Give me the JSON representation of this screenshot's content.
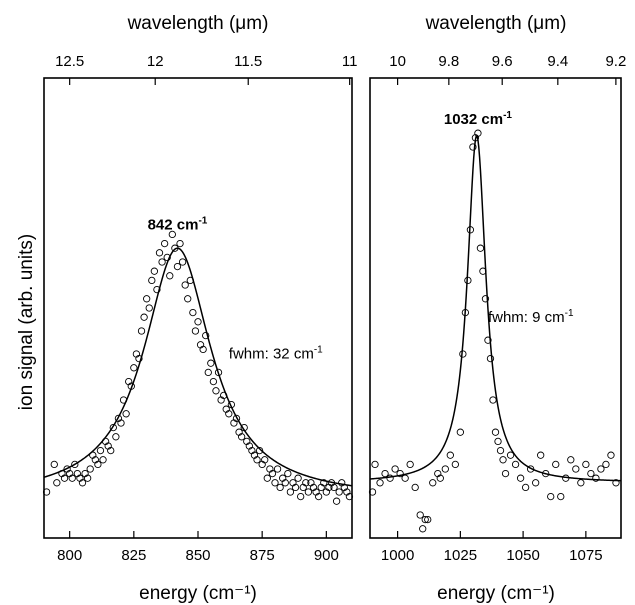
{
  "y_axis_title": "ion signal (arb. units)",
  "chart_data": [
    {
      "type": "scatter",
      "xlabel": "energy (cm⁻¹)",
      "top_label": "wavelength (μm)",
      "xlim": [
        790,
        910
      ],
      "ylim": [
        0,
        1.0
      ],
      "bottom_ticks": [
        800,
        825,
        850,
        875,
        900
      ],
      "top_ticks": [
        {
          "label": "12.5",
          "energy": 800
        },
        {
          "label": "12",
          "energy": 833.33
        },
        {
          "label": "11.5",
          "energy": 869.57
        },
        {
          "label": "11",
          "energy": 909.09
        }
      ],
      "peak_label": {
        "text": "842 cm",
        "sup": "-1",
        "x": 842,
        "y": 0.64
      },
      "fwhm_label": {
        "text": "fwhm: 32 cm",
        "sup": "-1",
        "x": 862,
        "y": 0.39
      },
      "fit": {
        "center": 842,
        "fwhm": 32,
        "amplitude": 0.545,
        "baseline": 0.085
      },
      "series": [
        {
          "x": [
            791,
            794,
            795,
            797,
            798,
            799,
            800,
            801,
            802,
            803,
            804,
            805,
            806,
            807,
            808,
            809,
            810,
            811,
            812,
            813,
            814,
            815,
            816,
            817,
            818,
            819,
            820,
            821,
            822,
            823,
            824,
            825,
            826,
            827,
            828,
            829,
            830,
            831,
            832,
            833,
            834,
            835,
            836,
            837,
            838,
            839,
            840,
            841,
            842,
            843,
            844,
            845,
            846,
            847,
            848,
            849,
            850,
            851,
            852,
            853,
            854,
            855,
            856,
            857,
            858,
            859,
            860,
            861,
            862,
            863,
            864,
            865,
            866,
            867,
            868,
            869,
            870,
            871,
            872,
            873,
            874,
            875,
            876,
            877,
            878,
            879,
            880,
            881,
            882,
            883,
            884,
            885,
            886,
            887,
            888,
            889,
            890,
            891,
            892,
            893,
            894,
            895,
            896,
            897,
            898,
            899,
            900,
            901,
            902,
            903,
            904,
            905,
            906,
            907,
            908,
            909
          ],
          "y": [
            0.1,
            0.16,
            0.12,
            0.14,
            0.13,
            0.15,
            0.14,
            0.13,
            0.16,
            0.14,
            0.13,
            0.12,
            0.14,
            0.13,
            0.15,
            0.18,
            0.17,
            0.16,
            0.19,
            0.17,
            0.21,
            0.2,
            0.19,
            0.24,
            0.22,
            0.26,
            0.25,
            0.3,
            0.27,
            0.34,
            0.33,
            0.37,
            0.4,
            0.39,
            0.45,
            0.48,
            0.52,
            0.5,
            0.56,
            0.58,
            0.54,
            0.62,
            0.6,
            0.64,
            0.61,
            0.57,
            0.66,
            0.63,
            0.59,
            0.64,
            0.6,
            0.55,
            0.52,
            0.56,
            0.49,
            0.45,
            0.47,
            0.42,
            0.41,
            0.44,
            0.36,
            0.38,
            0.34,
            0.32,
            0.36,
            0.3,
            0.31,
            0.28,
            0.27,
            0.29,
            0.25,
            0.26,
            0.23,
            0.22,
            0.24,
            0.21,
            0.2,
            0.19,
            0.18,
            0.17,
            0.19,
            0.16,
            0.17,
            0.13,
            0.15,
            0.14,
            0.12,
            0.15,
            0.11,
            0.13,
            0.12,
            0.14,
            0.1,
            0.12,
            0.11,
            0.13,
            0.09,
            0.11,
            0.12,
            0.1,
            0.12,
            0.11,
            0.1,
            0.09,
            0.11,
            0.12,
            0.1,
            0.11,
            0.12,
            0.11,
            0.08,
            0.1,
            0.12,
            0.11,
            0.1,
            0.09
          ]
        }
      ]
    },
    {
      "type": "scatter",
      "xlabel": "energy (cm⁻¹)",
      "top_label": "wavelength (μm)",
      "xlim": [
        989,
        1089
      ],
      "ylim": [
        0,
        1.0
      ],
      "bottom_ticks": [
        1000,
        1025,
        1050,
        1075
      ],
      "top_ticks": [
        {
          "label": "10",
          "energy": 1000
        },
        {
          "label": "9.8",
          "energy": 1020.41
        },
        {
          "label": "9.6",
          "energy": 1041.67
        },
        {
          "label": "9.4",
          "energy": 1063.83
        },
        {
          "label": "9.2",
          "energy": 1086.96
        }
      ],
      "peak_label": {
        "text": "1032 cm",
        "sup": "-1",
        "x": 1032,
        "y": 0.87
      },
      "fwhm_label": {
        "text": "fwhm: 9 cm",
        "sup": "-1",
        "x": 1036,
        "y": 0.47
      },
      "fit": {
        "center": 1031.5,
        "fwhm": 9,
        "amplitude": 0.755,
        "baseline": 0.12
      },
      "series": [
        {
          "x": [
            990,
            991,
            993,
            995,
            997,
            999,
            1001,
            1003,
            1005,
            1007,
            1009,
            1010,
            1011,
            1012,
            1014,
            1016,
            1017,
            1019,
            1021,
            1023,
            1025,
            1026,
            1027,
            1028,
            1029,
            1030,
            1031,
            1032,
            1033,
            1034,
            1035,
            1036,
            1037,
            1038,
            1039,
            1040,
            1041,
            1042,
            1043,
            1045,
            1047,
            1049,
            1051,
            1053,
            1055,
            1057,
            1059,
            1061,
            1063,
            1065,
            1067,
            1069,
            1071,
            1073,
            1075,
            1077,
            1079,
            1081,
            1083,
            1085,
            1087
          ],
          "y": [
            0.1,
            0.16,
            0.12,
            0.14,
            0.13,
            0.15,
            0.14,
            0.13,
            0.16,
            0.11,
            0.05,
            0.02,
            0.04,
            0.04,
            0.12,
            0.14,
            0.13,
            0.15,
            0.18,
            0.16,
            0.23,
            0.4,
            0.49,
            0.56,
            0.67,
            0.85,
            0.87,
            0.88,
            0.63,
            0.58,
            0.52,
            0.43,
            0.39,
            0.3,
            0.23,
            0.21,
            0.19,
            0.17,
            0.14,
            0.18,
            0.16,
            0.13,
            0.11,
            0.15,
            0.12,
            0.18,
            0.14,
            0.09,
            0.16,
            0.09,
            0.13,
            0.17,
            0.15,
            0.12,
            0.16,
            0.14,
            0.13,
            0.15,
            0.16,
            0.18,
            0.12
          ]
        }
      ]
    }
  ]
}
